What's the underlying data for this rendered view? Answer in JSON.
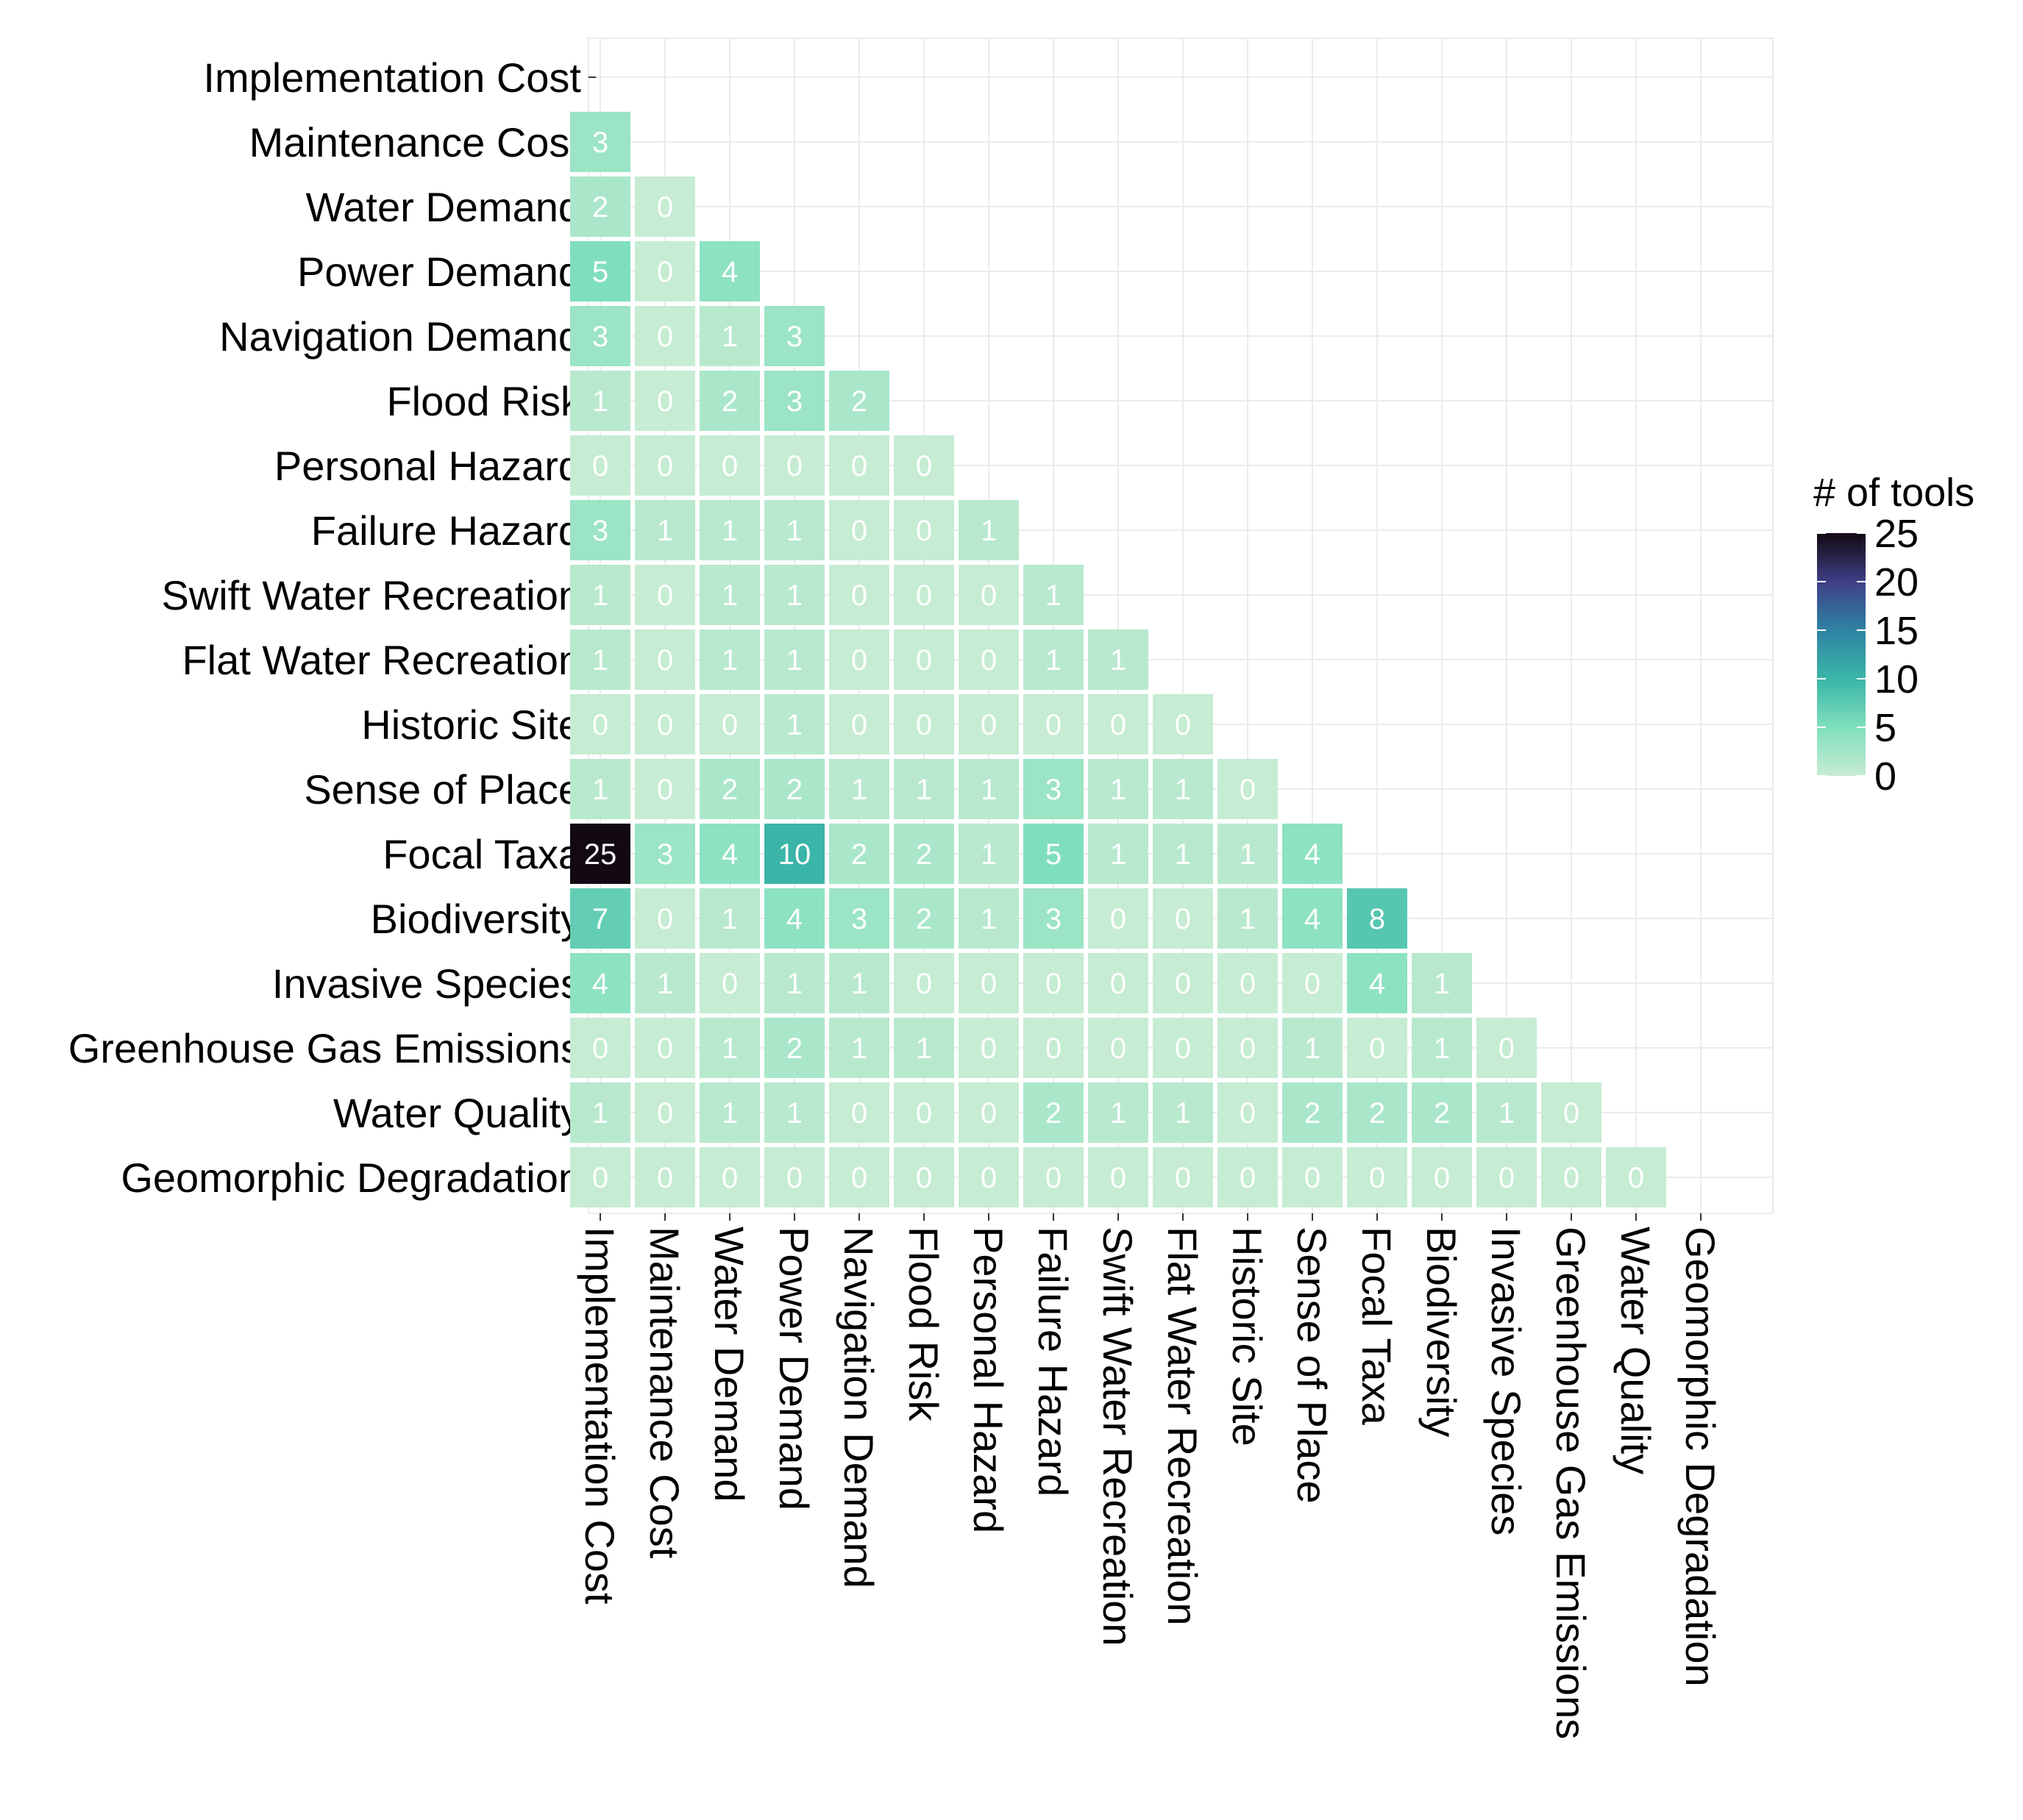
{
  "chart_data": {
    "type": "heatmap",
    "title": "",
    "xlabel": "",
    "ylabel": "",
    "categories": [
      "Implementation Cost",
      "Maintenance Cost",
      "Water Demand",
      "Power Demand",
      "Navigation Demand",
      "Flood Risk",
      "Personal Hazard",
      "Failure Hazard",
      "Swift Water Recreation",
      "Flat Water Recreation",
      "Historic Site",
      "Sense of Place",
      "Focal Taxa",
      "Biodiversity",
      "Invasive Species",
      "Greenhouse Gas Emissions",
      "Water Quality",
      "Geomorphic Degradation"
    ],
    "values": [
      [],
      [
        3
      ],
      [
        2,
        0
      ],
      [
        5,
        0,
        4
      ],
      [
        3,
        0,
        1,
        3
      ],
      [
        1,
        0,
        2,
        3,
        2
      ],
      [
        0,
        0,
        0,
        0,
        0,
        0
      ],
      [
        3,
        1,
        1,
        1,
        0,
        0,
        1
      ],
      [
        1,
        0,
        1,
        1,
        0,
        0,
        0,
        1
      ],
      [
        1,
        0,
        1,
        1,
        0,
        0,
        0,
        1,
        1
      ],
      [
        0,
        0,
        0,
        1,
        0,
        0,
        0,
        0,
        0,
        0
      ],
      [
        1,
        0,
        2,
        2,
        1,
        1,
        1,
        3,
        1,
        1,
        0
      ],
      [
        25,
        3,
        4,
        10,
        2,
        2,
        1,
        5,
        1,
        1,
        1,
        4
      ],
      [
        7,
        0,
        1,
        4,
        3,
        2,
        1,
        3,
        0,
        0,
        1,
        4,
        8
      ],
      [
        4,
        1,
        0,
        1,
        1,
        0,
        0,
        0,
        0,
        0,
        0,
        0,
        4,
        1
      ],
      [
        0,
        0,
        1,
        2,
        1,
        1,
        0,
        0,
        0,
        0,
        0,
        1,
        0,
        1,
        0
      ],
      [
        1,
        0,
        1,
        1,
        0,
        0,
        0,
        2,
        1,
        1,
        0,
        2,
        2,
        2,
        1,
        0
      ],
      [
        0,
        0,
        0,
        0,
        0,
        0,
        0,
        0,
        0,
        0,
        0,
        0,
        0,
        0,
        0,
        0,
        0
      ]
    ],
    "legend": {
      "title": "# of tools",
      "position": "right",
      "ticks": [
        25,
        20,
        15,
        10,
        5,
        0
      ],
      "range": [
        0,
        25
      ],
      "colors": [
        "#c6ecd3",
        "#7fdfbc",
        "#3ab5a8",
        "#2f83a4",
        "#3f3f86",
        "#120912"
      ]
    },
    "grid": true,
    "cell_border_color": "#ffffff"
  }
}
